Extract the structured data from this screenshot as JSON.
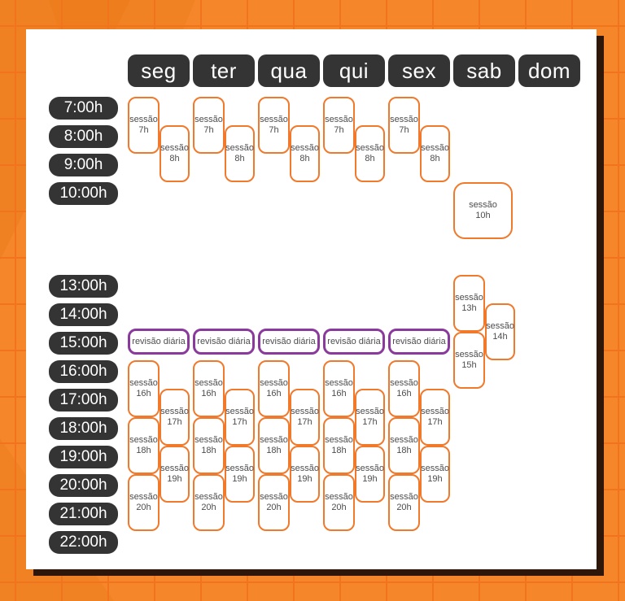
{
  "card": {
    "days": [
      "seg",
      "ter",
      "qua",
      "qui",
      "sex",
      "sab",
      "dom"
    ],
    "morning_times": [
      "7:00h",
      "8:00h",
      "9:00h",
      "10:00h"
    ],
    "afternoon_times": [
      "13:00h",
      "14:00h",
      "15:00h",
      "16:00h",
      "17:00h",
      "18:00h",
      "19:00h",
      "20:00h",
      "21:00h",
      "22:00h"
    ],
    "session_word": "sessão",
    "review_label": "revisão diária",
    "sessions": [
      {
        "day": "seg",
        "hour": "7h"
      },
      {
        "day": "seg",
        "hour": "8h"
      },
      {
        "day": "seg",
        "hour": "16h"
      },
      {
        "day": "seg",
        "hour": "17h"
      },
      {
        "day": "seg",
        "hour": "18h"
      },
      {
        "day": "seg",
        "hour": "19h"
      },
      {
        "day": "seg",
        "hour": "20h"
      },
      {
        "day": "ter",
        "hour": "7h"
      },
      {
        "day": "ter",
        "hour": "8h"
      },
      {
        "day": "ter",
        "hour": "16h"
      },
      {
        "day": "ter",
        "hour": "17h"
      },
      {
        "day": "ter",
        "hour": "18h"
      },
      {
        "day": "ter",
        "hour": "19h"
      },
      {
        "day": "ter",
        "hour": "20h"
      },
      {
        "day": "qua",
        "hour": "7h"
      },
      {
        "day": "qua",
        "hour": "8h"
      },
      {
        "day": "qua",
        "hour": "16h"
      },
      {
        "day": "qua",
        "hour": "17h"
      },
      {
        "day": "qua",
        "hour": "18h"
      },
      {
        "day": "qua",
        "hour": "19h"
      },
      {
        "day": "qua",
        "hour": "20h"
      },
      {
        "day": "qui",
        "hour": "7h"
      },
      {
        "day": "qui",
        "hour": "8h"
      },
      {
        "day": "qui",
        "hour": "16h"
      },
      {
        "day": "qui",
        "hour": "17h"
      },
      {
        "day": "qui",
        "hour": "18h"
      },
      {
        "day": "qui",
        "hour": "19h"
      },
      {
        "day": "qui",
        "hour": "20h"
      },
      {
        "day": "sex",
        "hour": "7h"
      },
      {
        "day": "sex",
        "hour": "8h"
      },
      {
        "day": "sex",
        "hour": "16h"
      },
      {
        "day": "sex",
        "hour": "17h"
      },
      {
        "day": "sex",
        "hour": "18h"
      },
      {
        "day": "sex",
        "hour": "19h"
      },
      {
        "day": "sex",
        "hour": "20h"
      },
      {
        "day": "sab",
        "hour": "10h"
      },
      {
        "day": "sab",
        "hour": "13h"
      },
      {
        "day": "sab",
        "hour": "14h"
      },
      {
        "day": "sab",
        "hour": "15h"
      }
    ],
    "reviews": [
      "seg",
      "ter",
      "qua",
      "qui",
      "sex"
    ]
  },
  "colors": {
    "background": "#f5872a",
    "grid_line": "#f1731d",
    "card_shadow": "#2e1708",
    "dark_chip": "#343434",
    "chip_text": "#ffffff",
    "session_border": "#f0792b",
    "review_border": "#8a3a9c",
    "session_text": "#4d4d4f"
  }
}
